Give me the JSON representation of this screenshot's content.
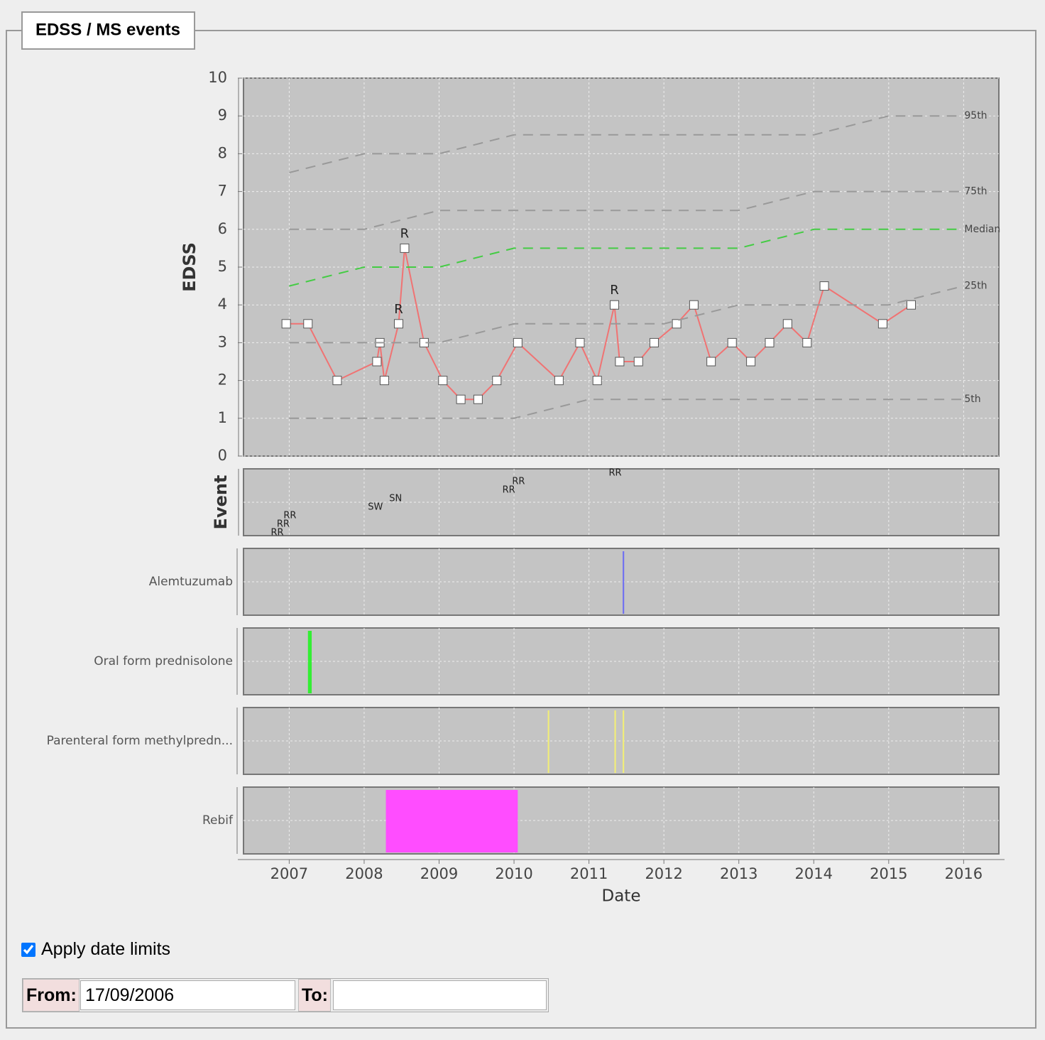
{
  "panel": {
    "title": "EDSS / MS events"
  },
  "chart_data": {
    "type": "line",
    "ylabel": "EDSS",
    "event_label": "Event",
    "xlabel": "Date",
    "xlim": [
      2006.39,
      2016.47
    ],
    "xticks": [
      2007,
      2008,
      2009,
      2010,
      2011,
      2012,
      2013,
      2014,
      2015,
      2016
    ],
    "ylim": [
      0,
      10
    ],
    "yticks": [
      0,
      1,
      2,
      3,
      4,
      5,
      6,
      7,
      8,
      9,
      10
    ],
    "grid": true,
    "series": [
      {
        "name": "EDSS",
        "color": "#f07373",
        "x": [
          2006.96,
          2007.25,
          2007.64,
          2008.17,
          2008.21,
          2008.27,
          2008.46,
          2008.54,
          2008.8,
          2009.05,
          2009.29,
          2009.52,
          2009.77,
          2010.05,
          2010.6,
          2010.88,
          2011.11,
          2011.34,
          2011.41,
          2011.66,
          2011.87,
          2012.17,
          2012.4,
          2012.63,
          2012.91,
          2013.16,
          2013.41,
          2013.65,
          2013.91,
          2014.14,
          2014.92,
          2015.3
        ],
        "values": [
          3.5,
          3.5,
          2,
          2.5,
          3,
          2,
          3.5,
          5.5,
          3,
          2,
          1.5,
          1.5,
          2,
          3,
          2,
          3,
          2,
          4,
          2.5,
          2.5,
          3,
          3.5,
          4,
          2.5,
          3,
          2.5,
          3,
          3.5,
          3,
          4.5,
          3.5,
          4
        ]
      },
      {
        "name": "95th",
        "color": "#999999",
        "dashed": true,
        "x": [
          2007,
          2008,
          2009,
          2010,
          2011,
          2012,
          2013,
          2014,
          2015,
          2016
        ],
        "values": [
          7.5,
          8,
          8,
          8.5,
          8.5,
          8.5,
          8.5,
          8.5,
          9,
          9
        ]
      },
      {
        "name": "75th",
        "color": "#999999",
        "dashed": true,
        "x": [
          2007,
          2008,
          2009,
          2010,
          2011,
          2012,
          2013,
          2014,
          2015,
          2016
        ],
        "values": [
          6,
          6,
          6.5,
          6.5,
          6.5,
          6.5,
          6.5,
          7,
          7,
          7
        ]
      },
      {
        "name": "Median",
        "color": "#44cc44",
        "dashed": true,
        "x": [
          2007,
          2008,
          2009,
          2010,
          2011,
          2012,
          2013,
          2014,
          2015,
          2016
        ],
        "values": [
          4.5,
          5,
          5,
          5.5,
          5.5,
          5.5,
          5.5,
          6,
          6,
          6
        ]
      },
      {
        "name": "25th",
        "color": "#999999",
        "dashed": true,
        "x": [
          2007,
          2008,
          2009,
          2010,
          2011,
          2012,
          2013,
          2014,
          2015,
          2016
        ],
        "values": [
          3,
          3,
          3,
          3.5,
          3.5,
          3.5,
          4,
          4,
          4,
          4.5
        ]
      },
      {
        "name": "5th",
        "color": "#999999",
        "dashed": true,
        "x": [
          2007,
          2008,
          2009,
          2010,
          2011,
          2012,
          2013,
          2014,
          2015,
          2016
        ],
        "values": [
          1,
          1,
          1,
          1,
          1.5,
          1.5,
          1.5,
          1.5,
          1.5,
          1.5
        ]
      }
    ],
    "annotations": [
      {
        "text": "R",
        "x": 2008.46,
        "y": 3.5
      },
      {
        "text": "R",
        "x": 2008.54,
        "y": 5.5
      },
      {
        "text": "R",
        "x": 2011.34,
        "y": 4
      }
    ],
    "events": [
      {
        "text": "RR",
        "x": 2006.84
      },
      {
        "text": "RR",
        "x": 2006.92
      },
      {
        "text": "RR",
        "x": 2007.01
      },
      {
        "text": "SW",
        "x": 2008.15
      },
      {
        "text": "SN",
        "x": 2008.42
      },
      {
        "text": "RR",
        "x": 2009.93
      },
      {
        "text": "RR",
        "x": 2010.06
      },
      {
        "text": "RR",
        "x": 2011.35
      }
    ],
    "drugs": [
      {
        "name": "Alemtuzumab",
        "color": "#6f6ff2",
        "periods": [
          [
            2011.45,
            2011.47
          ]
        ]
      },
      {
        "name": "Oral form prednisolone",
        "color": "#33ee33",
        "periods": [
          [
            2007.25,
            2007.3
          ]
        ]
      },
      {
        "name": "Parenteral form methylpredn...",
        "color": "#f2ee77",
        "periods": [
          [
            2010.45,
            2010.47
          ],
          [
            2011.34,
            2011.36
          ],
          [
            2011.45,
            2011.47
          ]
        ]
      },
      {
        "name": "Rebif",
        "color": "#ff4dff",
        "periods": [
          [
            2008.29,
            2010.05
          ]
        ]
      }
    ]
  },
  "form": {
    "checkbox_label": "Apply date limits",
    "checked": true,
    "from_label": "From:",
    "from_value": "17/09/2006",
    "to_label": "To:"
  }
}
